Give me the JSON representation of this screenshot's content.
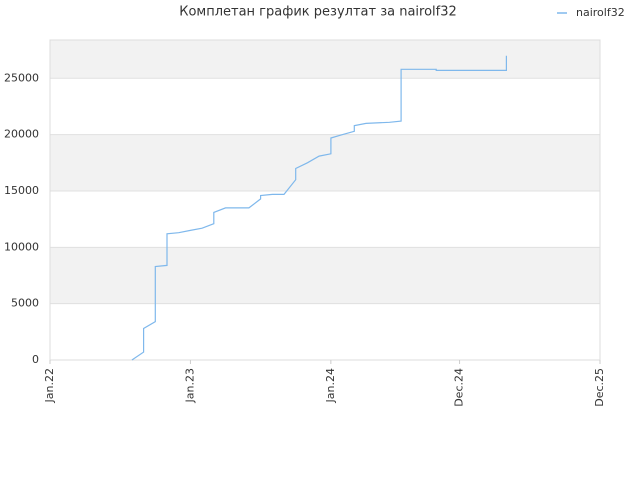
{
  "chart_data": {
    "type": "line",
    "title": "Комплетан график резултат за nairolf32",
    "x": [
      "2022-08",
      "2022-09",
      "2022-09",
      "2022-10",
      "2022-10",
      "2022-10",
      "2022-10",
      "2022-11",
      "2022-11",
      "2022-11",
      "2022-12",
      "2023-01",
      "2023-02",
      "2023-03",
      "2023-03",
      "2023-04",
      "2023-06",
      "2023-07",
      "2023-07",
      "2023-08",
      "2023-09",
      "2023-10",
      "2023-10",
      "2023-11",
      "2023-12",
      "2024-01",
      "2024-01",
      "2024-01",
      "2024-02",
      "2024-03",
      "2024-03",
      "2024-04",
      "2024-06",
      "2024-07",
      "2024-07",
      "2024-07",
      "2024-10",
      "2024-10",
      "2025-04",
      "2025-04"
    ],
    "series": [
      {
        "name": "nairolf32",
        "color": "#7fb8ec",
        "values": [
          0,
          700,
          2800,
          3400,
          5800,
          7600,
          8300,
          8400,
          9600,
          11200,
          11300,
          11500,
          11700,
          12100,
          13100,
          13500,
          13500,
          14300,
          14600,
          14700,
          14700,
          16000,
          17000,
          17500,
          18100,
          18300,
          19300,
          19700,
          20000,
          20300,
          20800,
          21000,
          21100,
          21200,
          24000,
          25800,
          25800,
          25700,
          25700,
          27000
        ]
      }
    ],
    "xlim": [
      "2022-01",
      "2025-12"
    ],
    "xticks": [
      {
        "value": "2022-01",
        "label": "Jan.22"
      },
      {
        "value": "2023-01",
        "label": "Jan.23"
      },
      {
        "value": "2024-01",
        "label": "Jan.24"
      },
      {
        "value": "2024-12",
        "label": "Dec.24"
      },
      {
        "value": "2025-12",
        "label": "Dec.25"
      }
    ],
    "ylim": [
      0,
      28400
    ],
    "yticks": [
      0,
      5000,
      10000,
      15000,
      20000,
      25000
    ],
    "grid": true,
    "legend": "top-right"
  }
}
